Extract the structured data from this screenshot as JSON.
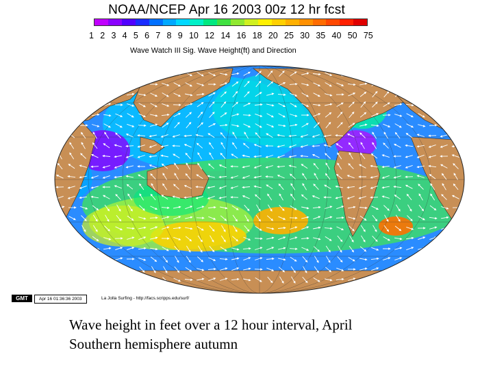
{
  "title": "NOAA/NCEP Apr 16 2003 00z 12 hr fcst",
  "scale_labels": [
    "1",
    "2",
    "3",
    "4",
    "5",
    "6",
    "7",
    "8",
    "9",
    "10",
    "12",
    "14",
    "16",
    "18",
    "20",
    "25",
    "30",
    "35",
    "40",
    "50",
    "75"
  ],
  "scale_colors": [
    "#c000ff",
    "#8a00ff",
    "#5000ff",
    "#1a2cff",
    "#0070ff",
    "#00a8ff",
    "#00d8ff",
    "#00f0c8",
    "#00e880",
    "#40e040",
    "#90e830",
    "#d0f020",
    "#fff000",
    "#ffd000",
    "#ffb000",
    "#ff9000",
    "#ff6c00",
    "#ff4800",
    "#ff2000",
    "#e00000"
  ],
  "subtitle": "Wave Watch III Sig. Wave Height(ft) and Direction",
  "map": {
    "ocean_base_color": "#2a8cff",
    "land_color": "#c88f55"
  },
  "footer": {
    "logo": "GMT",
    "timestamp": "Apr 16 01:36:36 2003",
    "credit": "La Jolla Surfing - http://facs.scripps.edu/surf/"
  },
  "caption": {
    "line1": "Wave height in feet over a 12 hour interval, April",
    "line2": "Southern hemisphere autumn"
  }
}
